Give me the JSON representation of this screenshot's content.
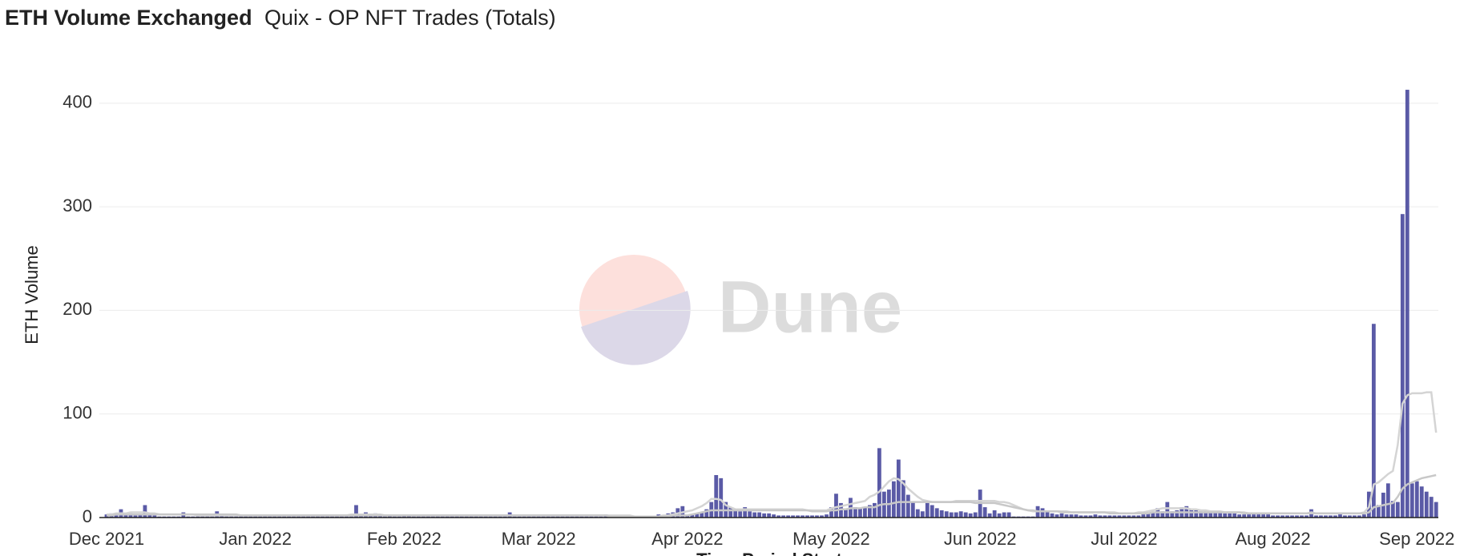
{
  "chart_data": {
    "type": "bar",
    "title": "ETH Volume Exchanged",
    "subtitle": "Quix - OP NFT Trades (Totals)",
    "y_label": "ETH Volume",
    "x_label": "Time Period Start",
    "watermark": "Dune",
    "ylim": [
      0,
      420
    ],
    "yticks": [
      0,
      100,
      200,
      300,
      400
    ],
    "grid": true,
    "categories": [
      "Dec 2021",
      null,
      null,
      null,
      null,
      null,
      null,
      null,
      null,
      null,
      null,
      null,
      null,
      null,
      null,
      null,
      null,
      null,
      null,
      null,
      null,
      null,
      null,
      null,
      null,
      null,
      null,
      null,
      null,
      null,
      null,
      "Jan 2022",
      null,
      null,
      null,
      null,
      null,
      null,
      null,
      null,
      null,
      null,
      null,
      null,
      null,
      null,
      null,
      null,
      null,
      null,
      null,
      null,
      null,
      null,
      null,
      null,
      null,
      null,
      null,
      null,
      null,
      null,
      "Feb 2022",
      null,
      null,
      null,
      null,
      null,
      null,
      null,
      null,
      null,
      null,
      null,
      null,
      null,
      null,
      null,
      null,
      null,
      null,
      null,
      null,
      null,
      null,
      null,
      null,
      null,
      null,
      null,
      "Mar 2022",
      null,
      null,
      null,
      null,
      null,
      null,
      null,
      null,
      null,
      null,
      null,
      null,
      null,
      null,
      null,
      null,
      null,
      null,
      null,
      null,
      null,
      null,
      null,
      null,
      null,
      null,
      null,
      null,
      null,
      null,
      "Apr 2022",
      null,
      null,
      null,
      null,
      null,
      null,
      null,
      null,
      null,
      null,
      null,
      null,
      null,
      null,
      null,
      null,
      null,
      null,
      null,
      null,
      null,
      null,
      null,
      null,
      null,
      null,
      null,
      null,
      null,
      "May 2022",
      null,
      null,
      null,
      null,
      null,
      null,
      null,
      null,
      null,
      null,
      null,
      null,
      null,
      null,
      null,
      null,
      null,
      null,
      null,
      null,
      null,
      null,
      null,
      null,
      null,
      null,
      null,
      null,
      null,
      null,
      "Jun 2022",
      null,
      null,
      null,
      null,
      null,
      null,
      null,
      null,
      null,
      null,
      null,
      null,
      null,
      null,
      null,
      null,
      null,
      null,
      null,
      null,
      null,
      null,
      null,
      null,
      null,
      null,
      null,
      null,
      null,
      "Jul 2022",
      null,
      null,
      null,
      null,
      null,
      null,
      null,
      null,
      null,
      null,
      null,
      null,
      null,
      null,
      null,
      null,
      null,
      null,
      null,
      null,
      null,
      null,
      null,
      null,
      null,
      null,
      null,
      null,
      null,
      null,
      "Aug 2022",
      null,
      null,
      null,
      null,
      null,
      null,
      null,
      null,
      null,
      null,
      null,
      null,
      null,
      null,
      null,
      null,
      null,
      null,
      null,
      null,
      null,
      null,
      null,
      null,
      null,
      null,
      null,
      null,
      null,
      "Sep 2022",
      null,
      null,
      null,
      null
    ],
    "series": [
      {
        "type": "bar",
        "color": "#5a5aa6",
        "values": [
          3,
          4,
          2,
          8,
          3,
          4,
          2,
          3,
          12,
          4,
          2,
          1,
          1,
          1,
          1,
          1,
          5,
          1,
          1,
          1,
          1,
          1,
          1,
          6,
          2,
          1,
          1,
          1,
          1,
          1,
          1,
          1,
          1,
          1,
          1,
          1,
          1,
          1,
          1,
          1,
          1,
          1,
          1,
          1,
          1,
          1,
          1,
          1,
          1,
          1,
          1,
          1,
          12,
          2,
          5,
          3,
          4,
          2,
          1,
          2,
          1,
          1,
          2,
          2,
          1,
          1,
          1,
          1,
          1,
          1,
          1,
          1,
          1,
          1,
          1,
          1,
          1,
          1,
          1,
          1,
          1,
          1,
          1,
          1,
          5,
          1,
          1,
          1,
          1,
          1,
          1,
          1,
          1,
          1,
          1,
          1,
          1,
          1,
          1,
          1,
          1,
          1,
          1,
          1,
          3,
          1,
          1,
          1,
          1,
          1,
          1,
          1,
          1,
          1,
          1,
          3,
          2,
          4,
          5,
          9,
          11,
          2,
          3,
          4,
          5,
          8,
          15,
          41,
          38,
          15,
          10,
          7,
          6,
          10,
          6,
          5,
          5,
          4,
          4,
          3,
          2,
          2,
          2,
          2,
          2,
          2,
          2,
          2,
          2,
          2,
          3,
          10,
          23,
          14,
          8,
          19,
          10,
          9,
          10,
          12,
          14,
          67,
          25,
          27,
          35,
          56,
          36,
          22,
          15,
          8,
          6,
          14,
          12,
          9,
          7,
          6,
          5,
          5,
          6,
          5,
          4,
          5,
          27,
          10,
          4,
          7,
          4,
          5,
          5,
          1,
          1,
          1,
          1,
          1,
          11,
          9,
          5,
          4,
          3,
          4,
          3,
          3,
          3,
          2,
          2,
          2,
          3,
          2,
          2,
          2,
          2,
          2,
          2,
          2,
          2,
          2,
          3,
          4,
          5,
          9,
          6,
          15,
          6,
          7,
          10,
          11,
          8,
          7,
          6,
          6,
          5,
          5,
          5,
          4,
          4,
          4,
          3,
          3,
          3,
          3,
          3,
          3,
          3,
          2,
          2,
          2,
          2,
          2,
          2,
          2,
          2,
          8,
          2,
          2,
          2,
          2,
          2,
          3,
          2,
          2,
          2,
          2,
          3,
          25,
          187,
          12,
          24,
          33,
          16,
          15,
          293,
          413,
          33,
          35,
          30,
          25,
          20,
          15
        ]
      },
      {
        "type": "line",
        "color": "#d4d4d4",
        "values": [
          3,
          3,
          4,
          4,
          4,
          5,
          5,
          5,
          5,
          4,
          4,
          3,
          3,
          3,
          3,
          3,
          3,
          3,
          3,
          2,
          2,
          2,
          2,
          2,
          2,
          2,
          2,
          2,
          2,
          2,
          2,
          2,
          2,
          2,
          2,
          2,
          2,
          2,
          2,
          2,
          2,
          2,
          2,
          2,
          2,
          2,
          2,
          2,
          2,
          2,
          2,
          3,
          3,
          3,
          3,
          3,
          3,
          3,
          2,
          2,
          2,
          2,
          2,
          2,
          2,
          2,
          2,
          2,
          2,
          2,
          2,
          2,
          2,
          2,
          2,
          2,
          2,
          2,
          2,
          2,
          2,
          2,
          2,
          2,
          2,
          2,
          2,
          2,
          2,
          2,
          2,
          2,
          2,
          2,
          2,
          2,
          2,
          2,
          2,
          2,
          2,
          2,
          2,
          2,
          2,
          2,
          2,
          2,
          2,
          2,
          1,
          1,
          1,
          1,
          1,
          1,
          2,
          2,
          3,
          4,
          5,
          6,
          7,
          9,
          11,
          14,
          18,
          18,
          17,
          12,
          10,
          8,
          8,
          8,
          8,
          8,
          8,
          8,
          8,
          8,
          8,
          8,
          8,
          8,
          8,
          8,
          7,
          7,
          7,
          7,
          7,
          9,
          10,
          11,
          12,
          13,
          14,
          15,
          16,
          20,
          22,
          25,
          30,
          35,
          38,
          37,
          33,
          28,
          24,
          20,
          17,
          16,
          15,
          15,
          15,
          15,
          15,
          16,
          16,
          16,
          16,
          16,
          16,
          16,
          16,
          16,
          15,
          15,
          14,
          12,
          10,
          8,
          7,
          6,
          6,
          6,
          6,
          6,
          6,
          6,
          6,
          5,
          5,
          5,
          5,
          5,
          5,
          5,
          5,
          5,
          5,
          4,
          4,
          4,
          4,
          5,
          5,
          6,
          7,
          8,
          9,
          9,
          9,
          9,
          9,
          9,
          8,
          8,
          7,
          7,
          6,
          6,
          6,
          5,
          5,
          5,
          5,
          5,
          4,
          4,
          4,
          4,
          4,
          4,
          4,
          4,
          4,
          4,
          4,
          4,
          4,
          5,
          4,
          4,
          4,
          4,
          4,
          4,
          4,
          4,
          4,
          4,
          5,
          10,
          32,
          34,
          38,
          42,
          45,
          70,
          110,
          118,
          120,
          120,
          120,
          121,
          121,
          82
        ]
      },
      {
        "type": "line",
        "color": "#c8c8c8",
        "values": [
          2,
          2,
          3,
          3,
          3,
          3,
          3,
          3,
          3,
          3,
          3,
          3,
          3,
          3,
          3,
          3,
          3,
          3,
          3,
          3,
          3,
          3,
          3,
          3,
          3,
          3,
          3,
          3,
          2,
          2,
          2,
          2,
          2,
          2,
          2,
          2,
          2,
          2,
          2,
          2,
          2,
          2,
          2,
          2,
          2,
          2,
          2,
          2,
          2,
          2,
          2,
          2,
          2,
          2,
          2,
          2,
          2,
          2,
          2,
          2,
          2,
          2,
          2,
          2,
          2,
          2,
          2,
          2,
          2,
          2,
          2,
          2,
          2,
          2,
          2,
          2,
          2,
          2,
          2,
          2,
          2,
          2,
          2,
          2,
          2,
          2,
          2,
          2,
          2,
          2,
          2,
          2,
          2,
          2,
          2,
          2,
          2,
          2,
          2,
          2,
          2,
          2,
          2,
          2,
          2,
          1,
          1,
          1,
          1,
          1,
          1,
          1,
          1,
          1,
          1,
          1,
          1,
          1,
          2,
          2,
          2,
          2,
          3,
          4,
          5,
          6,
          7,
          7,
          7,
          7,
          7,
          7,
          7,
          7,
          7,
          7,
          7,
          7,
          7,
          7,
          7,
          7,
          7,
          7,
          7,
          7,
          7,
          6,
          6,
          6,
          6,
          7,
          7,
          8,
          8,
          9,
          9,
          9,
          10,
          10,
          10,
          12,
          13,
          13,
          14,
          15,
          15,
          15,
          15,
          15,
          15,
          15,
          15,
          15,
          15,
          15,
          15,
          15,
          15,
          15,
          15,
          14,
          14,
          14,
          14,
          14,
          13,
          12,
          11,
          10,
          9,
          8,
          7,
          7,
          6,
          6,
          6,
          6,
          6,
          5,
          5,
          5,
          5,
          5,
          5,
          5,
          5,
          5,
          5,
          4,
          4,
          4,
          4,
          4,
          4,
          4,
          4,
          4,
          5,
          5,
          5,
          5,
          5,
          5,
          5,
          5,
          5,
          5,
          5,
          5,
          5,
          5,
          5,
          5,
          5,
          5,
          5,
          4,
          4,
          4,
          4,
          4,
          4,
          4,
          4,
          4,
          4,
          4,
          4,
          4,
          4,
          4,
          4,
          4,
          4,
          4,
          4,
          4,
          4,
          4,
          4,
          4,
          4,
          5,
          10,
          11,
          12,
          13,
          14,
          20,
          28,
          32,
          34,
          36,
          38,
          39,
          40,
          41
        ]
      }
    ]
  }
}
